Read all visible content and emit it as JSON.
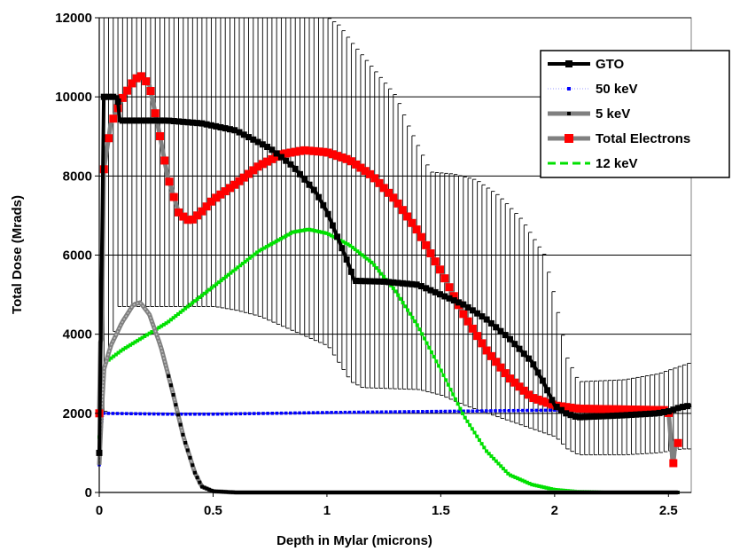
{
  "chart_data": {
    "type": "line",
    "xlabel": "Depth in Mylar (microns)",
    "ylabel": "Total Dose (Mrads)",
    "xlim": [
      0,
      2.6
    ],
    "ylim": [
      0,
      12000
    ],
    "xticks": [
      0,
      0.5,
      1,
      1.5,
      2,
      2.5
    ],
    "xtick_labels": [
      "0",
      "0.5",
      "1",
      "1.5",
      "2",
      "2.5"
    ],
    "yticks": [
      0,
      2000,
      4000,
      6000,
      8000,
      10000,
      12000
    ],
    "ytick_labels": [
      "0",
      "2000",
      "4000",
      "6000",
      "8000",
      "10000",
      "12000"
    ],
    "grid": "horizontal",
    "legend_position": "top-right",
    "series": [
      {
        "name": "GTO",
        "color": "#000000",
        "style": "solid-square",
        "points": [
          [
            0.0,
            1000
          ],
          [
            0.02,
            10000
          ],
          [
            0.08,
            10000
          ],
          [
            0.09,
            9400
          ],
          [
            0.3,
            9400
          ],
          [
            0.45,
            9330
          ],
          [
            0.6,
            9150
          ],
          [
            0.75,
            8700
          ],
          [
            0.85,
            8250
          ],
          [
            0.95,
            7600
          ],
          [
            1.0,
            7100
          ],
          [
            1.05,
            6400
          ],
          [
            1.1,
            5700
          ],
          [
            1.12,
            5350
          ],
          [
            1.25,
            5330
          ],
          [
            1.4,
            5250
          ],
          [
            1.5,
            5000
          ],
          [
            1.6,
            4750
          ],
          [
            1.7,
            4380
          ],
          [
            1.8,
            3900
          ],
          [
            1.9,
            3300
          ],
          [
            1.95,
            2800
          ],
          [
            2.0,
            2200
          ],
          [
            2.05,
            2000
          ],
          [
            2.1,
            1900
          ],
          [
            2.3,
            1950
          ],
          [
            2.45,
            2000
          ],
          [
            2.5,
            2050
          ],
          [
            2.55,
            2150
          ],
          [
            2.6,
            2200
          ]
        ]
      },
      {
        "name": "50 keV",
        "color": "#0000ff",
        "style": "dotted",
        "points": [
          [
            0.0,
            700
          ],
          [
            0.01,
            1400
          ],
          [
            0.02,
            2000
          ],
          [
            0.3,
            1980
          ],
          [
            0.5,
            1980
          ],
          [
            1.0,
            2020
          ],
          [
            1.5,
            2050
          ],
          [
            2.0,
            2080
          ],
          [
            2.3,
            2080
          ],
          [
            2.5,
            2080
          ]
        ]
      },
      {
        "name": "5 keV",
        "color": "#808080",
        "style": "thick-gray",
        "points": [
          [
            0.0,
            700
          ],
          [
            0.01,
            2000
          ],
          [
            0.02,
            3100
          ],
          [
            0.05,
            3700
          ],
          [
            0.1,
            4300
          ],
          [
            0.15,
            4750
          ],
          [
            0.18,
            4800
          ],
          [
            0.22,
            4500
          ],
          [
            0.27,
            3700
          ],
          [
            0.32,
            2600
          ],
          [
            0.37,
            1400
          ],
          [
            0.42,
            500
          ],
          [
            0.45,
            150
          ],
          [
            0.5,
            30
          ],
          [
            0.6,
            0
          ],
          [
            2.55,
            0
          ]
        ]
      },
      {
        "name": "Total Electrons",
        "color": "#ff0000",
        "style": "gray-line-red-markers",
        "points": [
          [
            0.0,
            2000
          ],
          [
            0.0,
            3700
          ],
          [
            0.01,
            3900
          ],
          [
            0.02,
            8150
          ],
          [
            0.05,
            9300
          ],
          [
            0.1,
            9950
          ],
          [
            0.15,
            10400
          ],
          [
            0.18,
            10550
          ],
          [
            0.22,
            10300
          ],
          [
            0.26,
            9200
          ],
          [
            0.3,
            8000
          ],
          [
            0.35,
            7050
          ],
          [
            0.4,
            6850
          ],
          [
            0.45,
            7100
          ],
          [
            0.5,
            7400
          ],
          [
            0.6,
            7800
          ],
          [
            0.7,
            8250
          ],
          [
            0.8,
            8550
          ],
          [
            0.9,
            8650
          ],
          [
            1.0,
            8600
          ],
          [
            1.1,
            8400
          ],
          [
            1.2,
            8000
          ],
          [
            1.3,
            7400
          ],
          [
            1.4,
            6600
          ],
          [
            1.5,
            5600
          ],
          [
            1.6,
            4500
          ],
          [
            1.7,
            3600
          ],
          [
            1.8,
            2900
          ],
          [
            1.9,
            2400
          ],
          [
            2.0,
            2200
          ],
          [
            2.1,
            2120
          ],
          [
            2.3,
            2100
          ],
          [
            2.5,
            2080
          ],
          [
            2.52,
            650
          ],
          [
            2.53,
            1250
          ],
          [
            2.55,
            1250
          ]
        ]
      },
      {
        "name": "12 keV",
        "color": "#00e000",
        "style": "dashed",
        "points": [
          [
            0.0,
            1400
          ],
          [
            0.01,
            2800
          ],
          [
            0.03,
            3300
          ],
          [
            0.1,
            3600
          ],
          [
            0.3,
            4300
          ],
          [
            0.5,
            5200
          ],
          [
            0.7,
            6100
          ],
          [
            0.85,
            6580
          ],
          [
            0.92,
            6650
          ],
          [
            1.0,
            6550
          ],
          [
            1.1,
            6250
          ],
          [
            1.2,
            5800
          ],
          [
            1.3,
            5100
          ],
          [
            1.4,
            4200
          ],
          [
            1.5,
            3100
          ],
          [
            1.6,
            1950
          ],
          [
            1.7,
            1050
          ],
          [
            1.8,
            450
          ],
          [
            1.9,
            200
          ],
          [
            2.0,
            70
          ],
          [
            2.1,
            20
          ],
          [
            2.3,
            5
          ],
          [
            2.55,
            0
          ]
        ]
      }
    ],
    "error_bars": {
      "series": "GTO",
      "x_range": [
        0.0,
        2.6
      ],
      "upper": [
        [
          0.0,
          12000
        ],
        [
          0.05,
          12000
        ],
        [
          1.0,
          12000
        ],
        [
          1.05,
          11800
        ],
        [
          1.1,
          11400
        ],
        [
          1.2,
          10700
        ],
        [
          1.3,
          10000
        ],
        [
          1.35,
          9300
        ],
        [
          1.4,
          8700
        ],
        [
          1.45,
          8100
        ],
        [
          1.55,
          8050
        ],
        [
          1.65,
          7900
        ],
        [
          1.75,
          7500
        ],
        [
          1.85,
          6900
        ],
        [
          1.95,
          6000
        ],
        [
          2.0,
          4800
        ],
        [
          2.05,
          3400
        ],
        [
          2.1,
          2800
        ],
        [
          2.3,
          2850
        ],
        [
          2.45,
          3000
        ],
        [
          2.55,
          3200
        ],
        [
          2.6,
          3300
        ]
      ],
      "lower": [
        [
          0.0,
          0
        ],
        [
          0.03,
          3000
        ],
        [
          0.08,
          4700
        ],
        [
          0.5,
          4700
        ],
        [
          0.6,
          4600
        ],
        [
          0.7,
          4450
        ],
        [
          0.8,
          4200
        ],
        [
          0.9,
          3950
        ],
        [
          1.0,
          3700
        ],
        [
          1.05,
          3250
        ],
        [
          1.1,
          2800
        ],
        [
          1.15,
          2650
        ],
        [
          1.3,
          2620
        ],
        [
          1.4,
          2600
        ],
        [
          1.5,
          2450
        ],
        [
          1.6,
          2200
        ],
        [
          1.7,
          2000
        ],
        [
          1.8,
          1800
        ],
        [
          1.9,
          1600
        ],
        [
          2.0,
          1400
        ],
        [
          2.05,
          1100
        ],
        [
          2.1,
          950
        ],
        [
          2.3,
          950
        ],
        [
          2.45,
          1000
        ],
        [
          2.55,
          1100
        ],
        [
          2.6,
          1100
        ]
      ]
    }
  }
}
